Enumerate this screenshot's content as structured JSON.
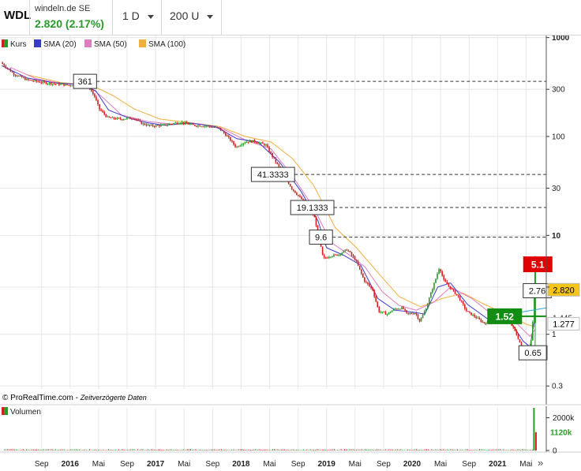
{
  "header": {
    "symbol": "WDL",
    "exchange": "windeln.de SE",
    "price_change": "2.820 (2.17%)",
    "interval": "1 D",
    "units": "200 U"
  },
  "legend": [
    {
      "label": "Kurs",
      "color": "#d62020",
      "color2": "#2a9a2a"
    },
    {
      "label": "SMA (20)",
      "color": "#3a3acc"
    },
    {
      "label": "SMA (50)",
      "color": "#e07cc0"
    },
    {
      "label": "SMA (100)",
      "color": "#f0b040"
    }
  ],
  "footer_credit": "© ProRealTime.com",
  "footer_note": "Zeitverzögerte Daten",
  "volume_label": "Volumen",
  "chart_data": {
    "type": "line",
    "yscale": "log",
    "ylim": [
      0.28,
      1050
    ],
    "y_ticks": [
      {
        "value": 1000,
        "label": "1000",
        "bold": true
      },
      {
        "value": 300,
        "label": "300",
        "bold": false
      },
      {
        "value": 100,
        "label": "100",
        "bold": false
      },
      {
        "value": 30,
        "label": "30",
        "bold": false
      },
      {
        "value": 10,
        "label": "10",
        "bold": true
      },
      {
        "value": 3,
        "label": "",
        "bold": false
      },
      {
        "value": 1,
        "label": "1",
        "bold": false
      },
      {
        "value": 0.3,
        "label": "0.3",
        "bold": false
      }
    ],
    "x_ticks": [
      {
        "t": 2015.667,
        "label": "Sep",
        "bold": false
      },
      {
        "t": 2016.0,
        "label": "2016",
        "bold": true
      },
      {
        "t": 2016.333,
        "label": "Mai",
        "bold": false
      },
      {
        "t": 2016.667,
        "label": "Sep",
        "bold": false
      },
      {
        "t": 2017.0,
        "label": "2017",
        "bold": true
      },
      {
        "t": 2017.333,
        "label": "Mai",
        "bold": false
      },
      {
        "t": 2017.667,
        "label": "Sep",
        "bold": false
      },
      {
        "t": 2018.0,
        "label": "2018",
        "bold": true
      },
      {
        "t": 2018.333,
        "label": "Mai",
        "bold": false
      },
      {
        "t": 2018.667,
        "label": "Sep",
        "bold": false
      },
      {
        "t": 2019.0,
        "label": "2019",
        "bold": true
      },
      {
        "t": 2019.333,
        "label": "Mai",
        "bold": false
      },
      {
        "t": 2019.667,
        "label": "Sep",
        "bold": false
      },
      {
        "t": 2020.0,
        "label": "2020",
        "bold": true
      },
      {
        "t": 2020.333,
        "label": "Mai",
        "bold": false
      },
      {
        "t": 2020.667,
        "label": "Sep",
        "bold": false
      },
      {
        "t": 2021.0,
        "label": "2021",
        "bold": true
      },
      {
        "t": 2021.333,
        "label": "Mai",
        "bold": false
      }
    ],
    "kurs": [
      [
        2015.2,
        560
      ],
      [
        2015.35,
        430
      ],
      [
        2015.5,
        375
      ],
      [
        2015.7,
        350
      ],
      [
        2016.0,
        330
      ],
      [
        2016.15,
        345
      ],
      [
        2016.22,
        330
      ],
      [
        2016.3,
        250
      ],
      [
        2016.35,
        190
      ],
      [
        2016.45,
        155
      ],
      [
        2016.6,
        150
      ],
      [
        2016.75,
        155
      ],
      [
        2016.85,
        135
      ],
      [
        2016.95,
        128
      ],
      [
        2017.1,
        130
      ],
      [
        2017.3,
        140
      ],
      [
        2017.45,
        130
      ],
      [
        2017.6,
        128
      ],
      [
        2017.75,
        122
      ],
      [
        2017.85,
        100
      ],
      [
        2017.95,
        78
      ],
      [
        2018.05,
        88
      ],
      [
        2018.15,
        90
      ],
      [
        2018.3,
        82
      ],
      [
        2018.38,
        62
      ],
      [
        2018.5,
        42
      ],
      [
        2018.6,
        30
      ],
      [
        2018.7,
        24
      ],
      [
        2018.8,
        20
      ],
      [
        2018.87,
        15
      ],
      [
        2018.92,
        9.6
      ],
      [
        2018.97,
        5.8
      ],
      [
        2019.05,
        6.2
      ],
      [
        2019.15,
        6.4
      ],
      [
        2019.25,
        7.2
      ],
      [
        2019.35,
        5.6
      ],
      [
        2019.45,
        3.5
      ],
      [
        2019.55,
        2.8
      ],
      [
        2019.62,
        1.7
      ],
      [
        2019.72,
        1.6
      ],
      [
        2019.8,
        1.8
      ],
      [
        2019.9,
        1.85
      ],
      [
        2019.95,
        1.6
      ],
      [
        2020.05,
        1.65
      ],
      [
        2020.1,
        1.35
      ],
      [
        2020.18,
        1.9
      ],
      [
        2020.23,
        2.6
      ],
      [
        2020.28,
        3.5
      ],
      [
        2020.33,
        4.8
      ],
      [
        2020.38,
        3.5
      ],
      [
        2020.45,
        3.0
      ],
      [
        2020.55,
        2.4
      ],
      [
        2020.65,
        1.7
      ],
      [
        2020.75,
        1.5
      ],
      [
        2020.85,
        1.3
      ],
      [
        2020.95,
        1.35
      ],
      [
        2021.05,
        1.4
      ],
      [
        2021.15,
        1.35
      ],
      [
        2021.22,
        1.05
      ],
      [
        2021.3,
        0.72
      ],
      [
        2021.35,
        0.62
      ],
      [
        2021.4,
        0.85
      ],
      [
        2021.42,
        1.3
      ],
      [
        2021.44,
        2.82
      ]
    ],
    "sma20": [
      [
        2015.2,
        520
      ],
      [
        2015.5,
        390
      ],
      [
        2015.8,
        350
      ],
      [
        2016.1,
        335
      ],
      [
        2016.3,
        290
      ],
      [
        2016.45,
        185
      ],
      [
        2016.7,
        152
      ],
      [
        2016.9,
        138
      ],
      [
        2017.1,
        130
      ],
      [
        2017.4,
        137
      ],
      [
        2017.7,
        126
      ],
      [
        2017.95,
        95
      ],
      [
        2018.2,
        88
      ],
      [
        2018.45,
        55
      ],
      [
        2018.7,
        28
      ],
      [
        2018.9,
        14
      ],
      [
        2019.0,
        7.5
      ],
      [
        2019.2,
        6.3
      ],
      [
        2019.4,
        5.0
      ],
      [
        2019.6,
        2.3
      ],
      [
        2019.8,
        1.75
      ],
      [
        2020.0,
        1.68
      ],
      [
        2020.15,
        1.6
      ],
      [
        2020.3,
        3.0
      ],
      [
        2020.45,
        3.3
      ],
      [
        2020.65,
        2.0
      ],
      [
        2020.9,
        1.4
      ],
      [
        2021.15,
        1.35
      ],
      [
        2021.3,
        0.85
      ],
      [
        2021.38,
        0.75
      ],
      [
        2021.44,
        1.5
      ]
    ],
    "sma50": [
      [
        2015.3,
        500
      ],
      [
        2015.6,
        385
      ],
      [
        2015.9,
        345
      ],
      [
        2016.2,
        335
      ],
      [
        2016.4,
        240
      ],
      [
        2016.6,
        165
      ],
      [
        2016.9,
        142
      ],
      [
        2017.2,
        133
      ],
      [
        2017.5,
        135
      ],
      [
        2017.8,
        118
      ],
      [
        2018.05,
        92
      ],
      [
        2018.35,
        75
      ],
      [
        2018.6,
        40
      ],
      [
        2018.85,
        19
      ],
      [
        2019.05,
        8.5
      ],
      [
        2019.25,
        6.5
      ],
      [
        2019.45,
        4.8
      ],
      [
        2019.65,
        2.7
      ],
      [
        2019.85,
        1.95
      ],
      [
        2020.05,
        1.75
      ],
      [
        2020.25,
        2.1
      ],
      [
        2020.45,
        3.0
      ],
      [
        2020.7,
        2.3
      ],
      [
        2020.95,
        1.55
      ],
      [
        2021.2,
        1.35
      ],
      [
        2021.38,
        0.95
      ],
      [
        2021.44,
        1.12
      ]
    ],
    "sma100": [
      [
        2015.5,
        420
      ],
      [
        2015.9,
        350
      ],
      [
        2016.25,
        330
      ],
      [
        2016.5,
        260
      ],
      [
        2016.75,
        190
      ],
      [
        2017.05,
        150
      ],
      [
        2017.4,
        138
      ],
      [
        2017.75,
        126
      ],
      [
        2018.05,
        100
      ],
      [
        2018.35,
        88
      ],
      [
        2018.6,
        60
      ],
      [
        2018.85,
        32
      ],
      [
        2019.1,
        12
      ],
      [
        2019.35,
        7.5
      ],
      [
        2019.6,
        4.2
      ],
      [
        2019.85,
        2.4
      ],
      [
        2020.1,
        1.9
      ],
      [
        2020.35,
        2.3
      ],
      [
        2020.6,
        2.6
      ],
      [
        2020.85,
        2.0
      ],
      [
        2021.1,
        1.6
      ],
      [
        2021.35,
        1.25
      ],
      [
        2021.44,
        1.2
      ]
    ],
    "dashed_levels": [
      {
        "value": 361,
        "label": "361",
        "label_t": 2016.04
      },
      {
        "value": 41.3333,
        "label": "41.3333",
        "label_t": 2018.12
      },
      {
        "value": 19.1333,
        "label": "19.1333",
        "label_t": 2018.58
      },
      {
        "value": 9.6,
        "label": "9.6",
        "label_t": 2018.8
      },
      {
        "value": 2.76,
        "label": "2.76",
        "label_t": 2021.3
      },
      {
        "value": 0.65,
        "label": "0.65",
        "label_t": 2021.25
      }
    ],
    "solid_levels": [
      {
        "value": 5.1,
        "label": "5.1",
        "color": "#e00000",
        "label_t": 2021.3,
        "start_t": 2021.4
      },
      {
        "value": 1.52,
        "label": "1.52",
        "color": "#128c12",
        "label_t": 2020.88,
        "start_t": 2020.93
      }
    ],
    "trendline": {
      "t1": 2020.98,
      "v1": 1.52,
      "t2": 2021.57,
      "v2": 1.85,
      "color": "#2aa6e0"
    },
    "price_markers": [
      {
        "value": 2.82,
        "label": "2.820",
        "bg": "#f5c518",
        "fg": "#000"
      },
      {
        "value": 1.277,
        "label": "1.277",
        "bg": "#ffffff",
        "fg": "#000"
      }
    ],
    "hidden_marker": {
      "value": 1.445,
      "label": "1.445"
    },
    "volume": {
      "ticks": [
        {
          "label": "2000k",
          "value": 2000
        },
        {
          "label": "0",
          "value": 0
        }
      ],
      "last_label": "1120k",
      "last_value": 1120,
      "spike_t": 2021.44,
      "spike_values": [
        2600,
        1120
      ],
      "max": 2600
    }
  }
}
